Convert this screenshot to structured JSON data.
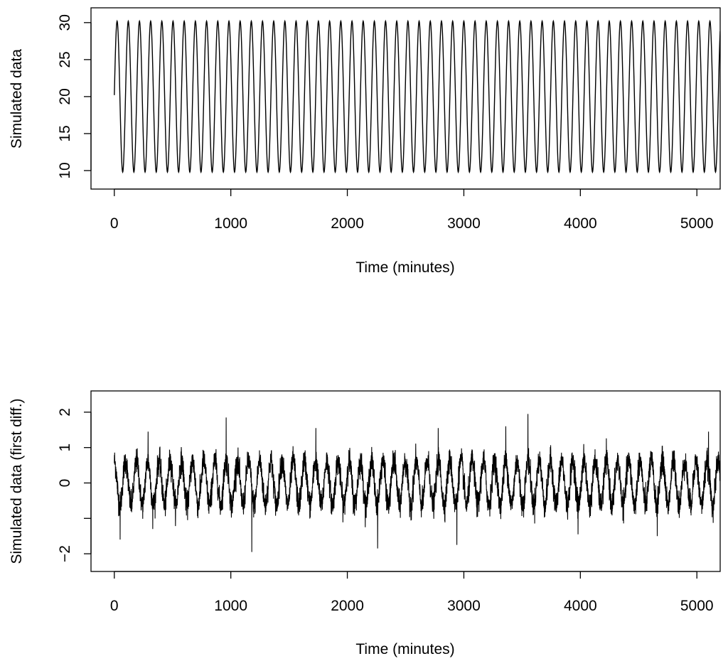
{
  "chart_data": [
    {
      "type": "line",
      "xlabel": "Time (minutes)",
      "ylabel": "Simulated data",
      "xlim": [
        -200,
        5200
      ],
      "ylim": [
        7.5,
        32
      ],
      "xticks": [
        0,
        1000,
        2000,
        3000,
        4000,
        5000
      ],
      "xtick_labels": [
        "0",
        "1000",
        "2000",
        "3000",
        "4000",
        "5000"
      ],
      "yticks": [
        10,
        15,
        20,
        25,
        30
      ],
      "ytick_labels": [
        "10",
        "15",
        "20",
        "25",
        "30"
      ],
      "grid": false,
      "series": [
        {
          "model": "sinusoid",
          "mean": 20,
          "amplitude": 10.2,
          "period_minutes": 96,
          "x_range": [
            0,
            5200
          ],
          "x": [
            0,
            24,
            48,
            72,
            96,
            120
          ],
          "y": [
            20.2,
            30.5,
            20,
            9.8,
            20,
            30
          ]
        }
      ]
    },
    {
      "type": "line",
      "xlabel": "Time (minutes)",
      "ylabel": "Simulated data (first diff.)",
      "xlim": [
        -200,
        5200
      ],
      "ylim": [
        -2.5,
        2.6
      ],
      "xticks": [
        0,
        1000,
        2000,
        3000,
        4000,
        5000
      ],
      "xtick_labels": [
        "0",
        "1000",
        "2000",
        "3000",
        "4000",
        "5000"
      ],
      "yticks": [
        -2,
        -1,
        0,
        1,
        2
      ],
      "ytick_labels": [
        "−2",
        "",
        "0",
        "1",
        "2"
      ],
      "grid": false,
      "series": [
        {
          "model": "noisy sinusoid",
          "amplitude": 0.62,
          "period_minutes": 96,
          "noise_sd": 0.18,
          "x_range": [
            0,
            5200
          ],
          "spikes": [
            {
              "x": 50,
              "y": -1.6
            },
            {
              "x": 290,
              "y": 1.45
            },
            {
              "x": 330,
              "y": -1.3
            },
            {
              "x": 960,
              "y": 1.85
            },
            {
              "x": 1180,
              "y": -1.95
            },
            {
              "x": 1730,
              "y": 1.55
            },
            {
              "x": 2260,
              "y": -1.85
            },
            {
              "x": 2780,
              "y": 1.55
            },
            {
              "x": 2940,
              "y": -1.75
            },
            {
              "x": 3360,
              "y": 1.6
            },
            {
              "x": 3550,
              "y": 1.95
            },
            {
              "x": 3980,
              "y": -1.45
            },
            {
              "x": 4660,
              "y": -1.5
            },
            {
              "x": 5100,
              "y": 1.45
            }
          ]
        }
      ]
    }
  ]
}
